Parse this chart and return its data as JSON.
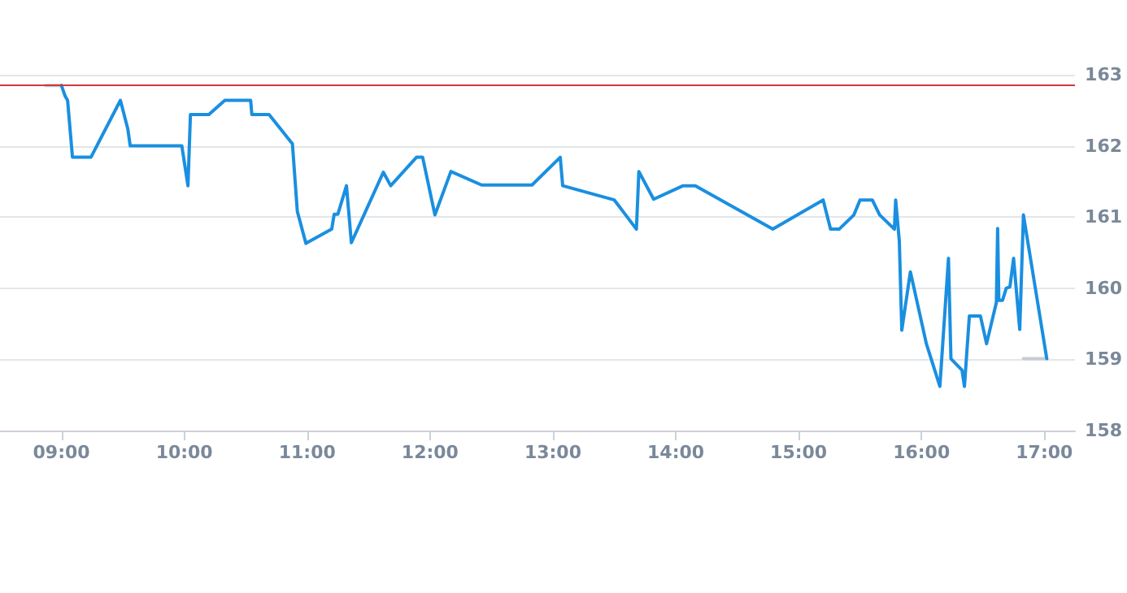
{
  "chart_data": {
    "type": "line",
    "xlim": [
      8.5,
      17.25
    ],
    "ylim": [
      158,
      163
    ],
    "xticks": [
      {
        "value": 9,
        "label": "09:00"
      },
      {
        "value": 10,
        "label": "10:00"
      },
      {
        "value": 11,
        "label": "11:00"
      },
      {
        "value": 12,
        "label": "12:00"
      },
      {
        "value": 13,
        "label": "13:00"
      },
      {
        "value": 14,
        "label": "14:00"
      },
      {
        "value": 15,
        "label": "15:00"
      },
      {
        "value": 16,
        "label": "16:00"
      },
      {
        "value": 17,
        "label": "17:00"
      }
    ],
    "yticks": [
      158,
      159,
      160,
      161,
      162,
      163
    ],
    "grid": "y",
    "marker": "none",
    "line_style": "solid",
    "ref_lines": [
      {
        "axis": "y",
        "value": 162.85,
        "color": "#d03a3a"
      }
    ],
    "series": [
      {
        "color": "#c8ccd0",
        "x": [
          8.87,
          9.0
        ],
        "values": [
          162.85,
          162.85
        ]
      },
      {
        "color": "#c8ccd0",
        "x": [
          16.83,
          17.02
        ],
        "values": [
          159.01,
          159.01
        ]
      },
      {
        "color": "#1a8fe0",
        "x": [
          9.0,
          9.03,
          9.05,
          9.09,
          9.24,
          9.48,
          9.54,
          9.56,
          9.98,
          10.03,
          10.05,
          10.2,
          10.33,
          10.54,
          10.55,
          10.69,
          10.88,
          10.92,
          10.94,
          10.99,
          11.2,
          11.22,
          11.25,
          11.32,
          11.36,
          11.62,
          11.68,
          11.89,
          11.94,
          12.04,
          12.17,
          12.42,
          12.83,
          13.06,
          13.08,
          13.5,
          13.68,
          13.7,
          13.82,
          14.06,
          14.16,
          14.79,
          15.2,
          15.26,
          15.33,
          15.45,
          15.5,
          15.6,
          15.66,
          15.78,
          15.79,
          15.82,
          15.84,
          15.91,
          16.04,
          16.15,
          16.22,
          16.24,
          16.33,
          16.35,
          16.39,
          16.48,
          16.53,
          16.61,
          16.62,
          16.63,
          16.66,
          16.69,
          16.72,
          16.75,
          16.8,
          16.83,
          17.02
        ],
        "values": [
          162.85,
          162.7,
          162.64,
          161.84,
          161.84,
          162.64,
          162.24,
          162.0,
          162.0,
          161.44,
          162.44,
          162.44,
          162.64,
          162.64,
          162.44,
          162.44,
          162.03,
          161.08,
          160.95,
          160.63,
          160.83,
          161.04,
          161.04,
          161.44,
          160.64,
          161.63,
          161.44,
          161.84,
          161.84,
          161.03,
          161.64,
          161.45,
          161.45,
          161.84,
          161.44,
          161.24,
          160.83,
          161.64,
          161.25,
          161.44,
          161.44,
          160.83,
          161.24,
          160.83,
          160.83,
          161.03,
          161.24,
          161.24,
          161.03,
          160.83,
          161.24,
          160.66,
          159.41,
          160.23,
          159.22,
          158.62,
          160.42,
          159.01,
          158.85,
          158.62,
          159.61,
          159.61,
          159.22,
          159.8,
          160.84,
          159.83,
          159.83,
          160.0,
          160.02,
          160.42,
          159.42,
          161.03,
          159.01
        ]
      }
    ]
  }
}
